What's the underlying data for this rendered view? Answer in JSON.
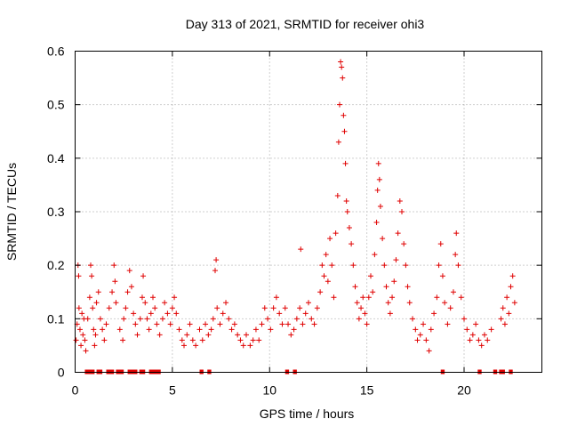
{
  "chart_data": {
    "type": "scatter",
    "title": "Day 313 of 2021, SRMTID for receiver ohi3",
    "xlabel": "GPS time / hours",
    "ylabel": "SRMTID / TECUs",
    "xlim": [
      0,
      24.0
    ],
    "ylim": [
      0,
      0.6
    ],
    "x_ticks": [
      0,
      5,
      10,
      15,
      20
    ],
    "x_tick_labels": [
      "0",
      "5",
      "10",
      "15",
      "20"
    ],
    "y_ticks": [
      0,
      0.1,
      0.2,
      0.3,
      0.4,
      0.5,
      0.6
    ],
    "y_tick_labels": [
      "0",
      "0.1",
      "0.2",
      "0.3",
      "0.4",
      "0.5",
      "0.6"
    ],
    "grid": true,
    "marker": "plus",
    "color": "#e00000",
    "series": [
      {
        "name": "SRMTID",
        "points": [
          [
            0.05,
            0.06
          ],
          [
            0.1,
            0.09
          ],
          [
            0.15,
            0.2
          ],
          [
            0.18,
            0.18
          ],
          [
            0.2,
            0.12
          ],
          [
            0.25,
            0.08
          ],
          [
            0.3,
            0.05
          ],
          [
            0.35,
            0.11
          ],
          [
            0.4,
            0.07
          ],
          [
            0.45,
            0.1
          ],
          [
            0.5,
            0.06
          ],
          [
            0.55,
            0.04
          ],
          [
            0.65,
            0.1
          ],
          [
            0.75,
            0.14
          ],
          [
            0.8,
            0.2
          ],
          [
            0.85,
            0.18
          ],
          [
            0.9,
            0.12
          ],
          [
            0.95,
            0.08
          ],
          [
            1.0,
            0.05
          ],
          [
            1.05,
            0.07
          ],
          [
            1.1,
            0.13
          ],
          [
            1.2,
            0.15
          ],
          [
            1.3,
            0.1
          ],
          [
            1.4,
            0.08
          ],
          [
            1.5,
            0.06
          ],
          [
            1.6,
            0.09
          ],
          [
            1.75,
            0.12
          ],
          [
            1.9,
            0.15
          ],
          [
            2.0,
            0.2
          ],
          [
            2.05,
            0.17
          ],
          [
            2.1,
            0.13
          ],
          [
            2.3,
            0.08
          ],
          [
            2.45,
            0.06
          ],
          [
            2.5,
            0.1
          ],
          [
            2.6,
            0.12
          ],
          [
            2.7,
            0.15
          ],
          [
            2.8,
            0.19
          ],
          [
            2.9,
            0.16
          ],
          [
            3.0,
            0.11
          ],
          [
            3.1,
            0.09
          ],
          [
            3.2,
            0.07
          ],
          [
            3.35,
            0.1
          ],
          [
            3.45,
            0.14
          ],
          [
            3.5,
            0.18
          ],
          [
            3.6,
            0.13
          ],
          [
            3.7,
            0.1
          ],
          [
            3.8,
            0.08
          ],
          [
            3.9,
            0.11
          ],
          [
            4.0,
            0.14
          ],
          [
            4.1,
            0.12
          ],
          [
            4.2,
            0.09
          ],
          [
            4.35,
            0.07
          ],
          [
            4.5,
            0.1
          ],
          [
            4.6,
            0.13
          ],
          [
            4.75,
            0.11
          ],
          [
            4.9,
            0.09
          ],
          [
            5.0,
            0.12
          ],
          [
            5.1,
            0.14
          ],
          [
            5.2,
            0.11
          ],
          [
            5.35,
            0.08
          ],
          [
            5.5,
            0.06
          ],
          [
            5.6,
            0.05
          ],
          [
            5.75,
            0.07
          ],
          [
            5.9,
            0.09
          ],
          [
            6.05,
            0.06
          ],
          [
            6.2,
            0.05
          ],
          [
            6.4,
            0.08
          ],
          [
            6.55,
            0.06
          ],
          [
            6.7,
            0.09
          ],
          [
            6.85,
            0.07
          ],
          [
            7.0,
            0.08
          ],
          [
            7.1,
            0.1
          ],
          [
            7.2,
            0.19
          ],
          [
            7.25,
            0.21
          ],
          [
            7.3,
            0.12
          ],
          [
            7.45,
            0.09
          ],
          [
            7.6,
            0.11
          ],
          [
            7.75,
            0.13
          ],
          [
            7.9,
            0.1
          ],
          [
            8.05,
            0.08
          ],
          [
            8.2,
            0.09
          ],
          [
            8.35,
            0.07
          ],
          [
            8.5,
            0.06
          ],
          [
            8.65,
            0.05
          ],
          [
            8.8,
            0.07
          ],
          [
            9.0,
            0.05
          ],
          [
            9.15,
            0.06
          ],
          [
            9.3,
            0.08
          ],
          [
            9.45,
            0.06
          ],
          [
            9.6,
            0.09
          ],
          [
            9.75,
            0.12
          ],
          [
            9.9,
            0.1
          ],
          [
            10.05,
            0.08
          ],
          [
            10.2,
            0.12
          ],
          [
            10.35,
            0.14
          ],
          [
            10.5,
            0.11
          ],
          [
            10.65,
            0.09
          ],
          [
            10.8,
            0.12
          ],
          [
            10.95,
            0.09
          ],
          [
            11.1,
            0.07
          ],
          [
            11.25,
            0.08
          ],
          [
            11.4,
            0.1
          ],
          [
            11.55,
            0.12
          ],
          [
            11.6,
            0.23
          ],
          [
            11.7,
            0.09
          ],
          [
            11.85,
            0.11
          ],
          [
            12.0,
            0.13
          ],
          [
            12.15,
            0.1
          ],
          [
            12.3,
            0.09
          ],
          [
            12.45,
            0.12
          ],
          [
            12.6,
            0.15
          ],
          [
            12.7,
            0.2
          ],
          [
            12.8,
            0.18
          ],
          [
            12.9,
            0.22
          ],
          [
            13.0,
            0.17
          ],
          [
            13.1,
            0.25
          ],
          [
            13.2,
            0.2
          ],
          [
            13.3,
            0.14
          ],
          [
            13.4,
            0.26
          ],
          [
            13.5,
            0.33
          ],
          [
            13.55,
            0.43
          ],
          [
            13.6,
            0.5
          ],
          [
            13.65,
            0.58
          ],
          [
            13.7,
            0.57
          ],
          [
            13.75,
            0.55
          ],
          [
            13.8,
            0.48
          ],
          [
            13.85,
            0.45
          ],
          [
            13.9,
            0.39
          ],
          [
            13.95,
            0.32
          ],
          [
            14.0,
            0.3
          ],
          [
            14.1,
            0.27
          ],
          [
            14.2,
            0.24
          ],
          [
            14.3,
            0.2
          ],
          [
            14.4,
            0.16
          ],
          [
            14.5,
            0.13
          ],
          [
            14.6,
            0.1
          ],
          [
            14.7,
            0.12
          ],
          [
            14.8,
            0.14
          ],
          [
            14.9,
            0.11
          ],
          [
            15.0,
            0.09
          ],
          [
            15.1,
            0.14
          ],
          [
            15.2,
            0.18
          ],
          [
            15.3,
            0.15
          ],
          [
            15.4,
            0.22
          ],
          [
            15.5,
            0.28
          ],
          [
            15.55,
            0.34
          ],
          [
            15.6,
            0.39
          ],
          [
            15.65,
            0.36
          ],
          [
            15.7,
            0.31
          ],
          [
            15.8,
            0.25
          ],
          [
            15.9,
            0.2
          ],
          [
            16.0,
            0.16
          ],
          [
            16.1,
            0.13
          ],
          [
            16.2,
            0.11
          ],
          [
            16.3,
            0.14
          ],
          [
            16.4,
            0.17
          ],
          [
            16.5,
            0.21
          ],
          [
            16.6,
            0.26
          ],
          [
            16.7,
            0.32
          ],
          [
            16.8,
            0.3
          ],
          [
            16.9,
            0.24
          ],
          [
            17.0,
            0.2
          ],
          [
            17.1,
            0.16
          ],
          [
            17.2,
            0.13
          ],
          [
            17.35,
            0.1
          ],
          [
            17.5,
            0.08
          ],
          [
            17.6,
            0.06
          ],
          [
            17.75,
            0.07
          ],
          [
            17.9,
            0.09
          ],
          [
            18.05,
            0.06
          ],
          [
            18.2,
            0.04
          ],
          [
            18.3,
            0.08
          ],
          [
            18.45,
            0.11
          ],
          [
            18.6,
            0.14
          ],
          [
            18.7,
            0.2
          ],
          [
            18.8,
            0.24
          ],
          [
            18.9,
            0.18
          ],
          [
            19.0,
            0.13
          ],
          [
            19.15,
            0.09
          ],
          [
            19.3,
            0.12
          ],
          [
            19.45,
            0.15
          ],
          [
            19.55,
            0.22
          ],
          [
            19.6,
            0.26
          ],
          [
            19.7,
            0.2
          ],
          [
            19.85,
            0.14
          ],
          [
            20.0,
            0.1
          ],
          [
            20.15,
            0.08
          ],
          [
            20.3,
            0.06
          ],
          [
            20.45,
            0.07
          ],
          [
            20.6,
            0.09
          ],
          [
            20.75,
            0.06
          ],
          [
            20.9,
            0.05
          ],
          [
            21.05,
            0.07
          ],
          [
            21.2,
            0.06
          ],
          [
            21.4,
            0.08
          ],
          [
            21.9,
            0.1
          ],
          [
            22.0,
            0.12
          ],
          [
            22.1,
            0.09
          ],
          [
            22.2,
            0.14
          ],
          [
            22.3,
            0.11
          ],
          [
            22.4,
            0.16
          ],
          [
            22.5,
            0.18
          ],
          [
            22.6,
            0.13
          ]
        ]
      }
    ],
    "data_gaps_at_zero": [
      [
        0.5,
        1.0
      ],
      [
        1.1,
        1.4
      ],
      [
        1.6,
        2.0
      ],
      [
        2.1,
        2.5
      ],
      [
        2.7,
        3.2
      ],
      [
        3.3,
        3.6
      ],
      [
        3.8,
        4.4
      ],
      [
        6.4,
        6.6
      ],
      [
        6.8,
        7.0
      ],
      [
        10.8,
        11.0
      ],
      [
        11.2,
        11.4
      ],
      [
        18.8,
        19.0
      ],
      [
        20.7,
        20.9
      ],
      [
        21.5,
        21.7
      ],
      [
        21.8,
        22.1
      ],
      [
        22.3,
        22.5
      ]
    ]
  }
}
